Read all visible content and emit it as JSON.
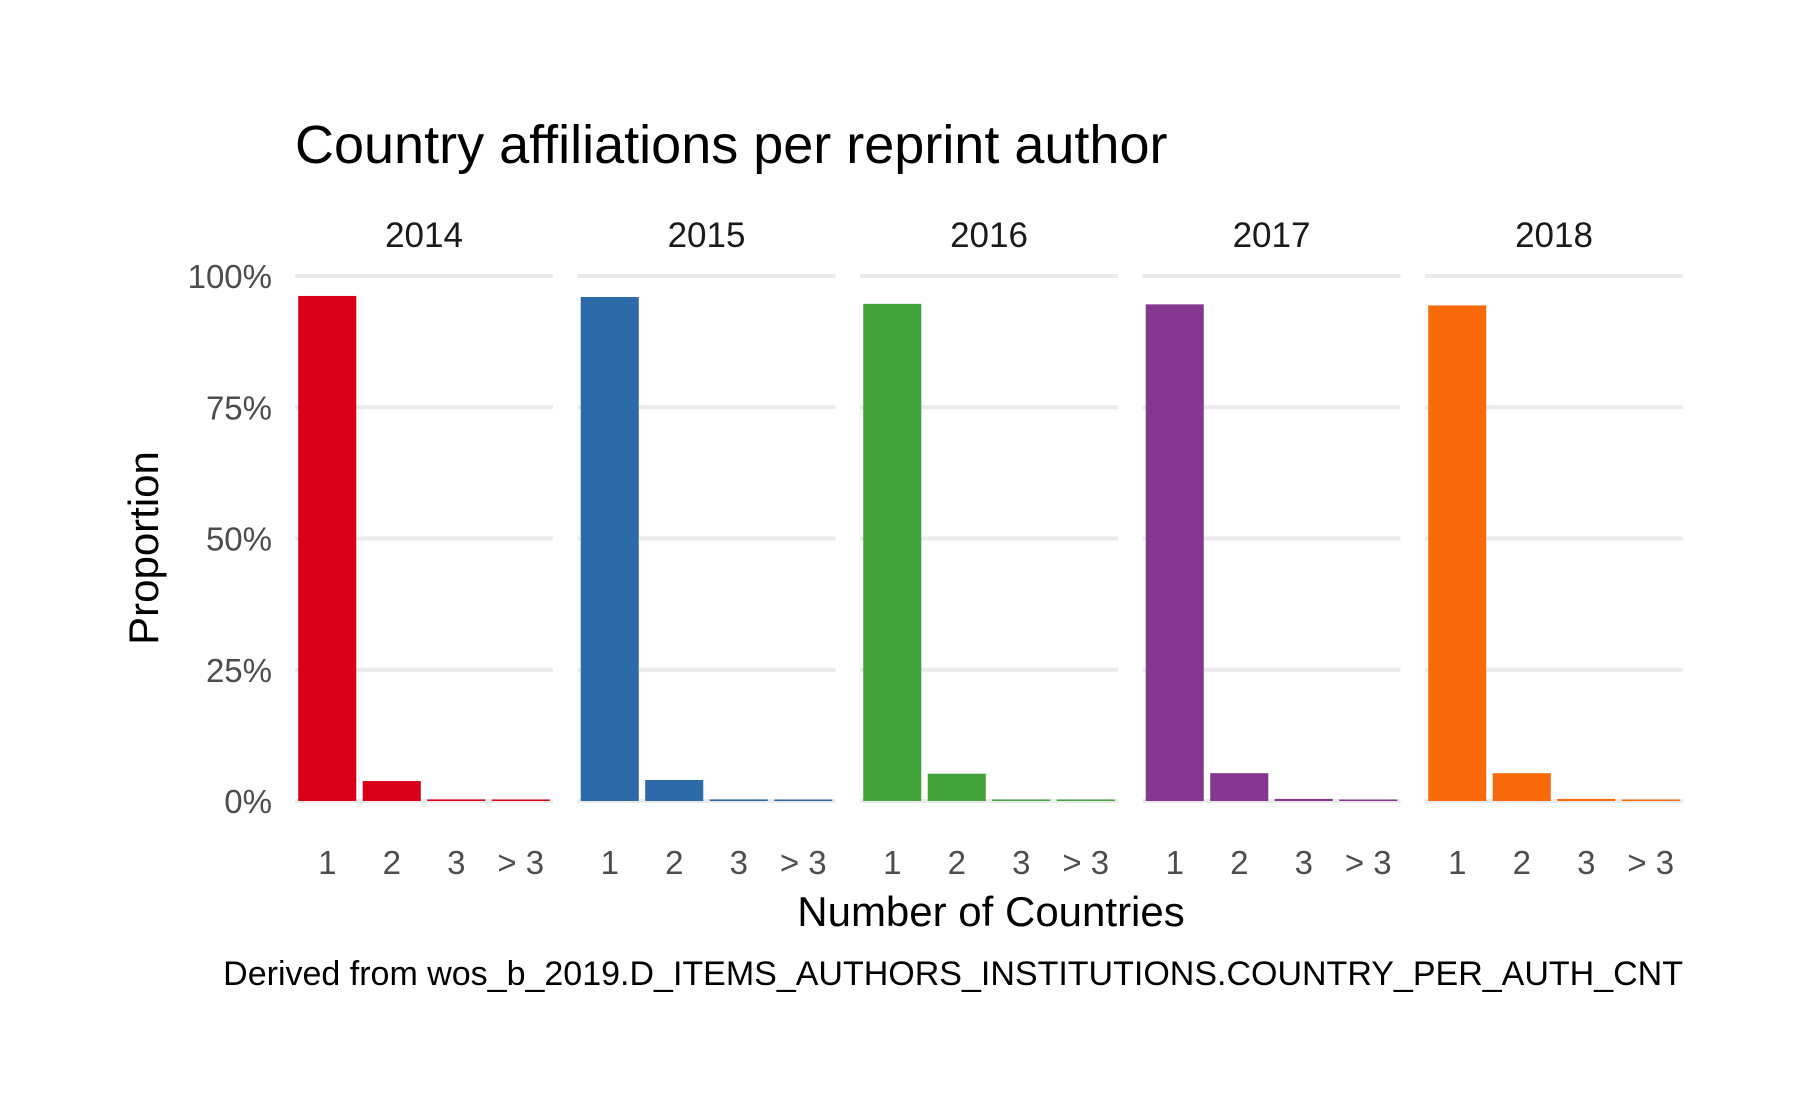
{
  "chart_data": {
    "type": "bar",
    "title": "Country affiliations per reprint author",
    "xlabel": "Number of Countries",
    "ylabel": "Proportion",
    "caption": "Derived from wos_b_2019.D_ITEMS_AUTHORS_INSTITUTIONS.COUNTRY_PER_AUTH_CNT",
    "categories": [
      "1",
      "2",
      "3",
      "> 3"
    ],
    "ylim": [
      0,
      1
    ],
    "y_ticks": [
      0,
      0.25,
      0.5,
      0.75,
      1
    ],
    "y_tick_labels": [
      "0%",
      "25%",
      "50%",
      "75%",
      "100%"
    ],
    "grid": true,
    "legend": "none",
    "facets": [
      {
        "name": "2014",
        "color": "#da0019",
        "values": [
          0.962,
          0.038,
          0.003,
          0.002
        ]
      },
      {
        "name": "2015",
        "color": "#2d6aa9",
        "values": [
          0.96,
          0.04,
          0.003,
          0.002
        ]
      },
      {
        "name": "2016",
        "color": "#42a33a",
        "values": [
          0.947,
          0.052,
          0.002,
          0.002
        ]
      },
      {
        "name": "2017",
        "color": "#84378f",
        "values": [
          0.946,
          0.053,
          0.004,
          0.002
        ]
      },
      {
        "name": "2018",
        "color": "#fa6a0a",
        "values": [
          0.944,
          0.053,
          0.004,
          0.002
        ]
      }
    ]
  }
}
